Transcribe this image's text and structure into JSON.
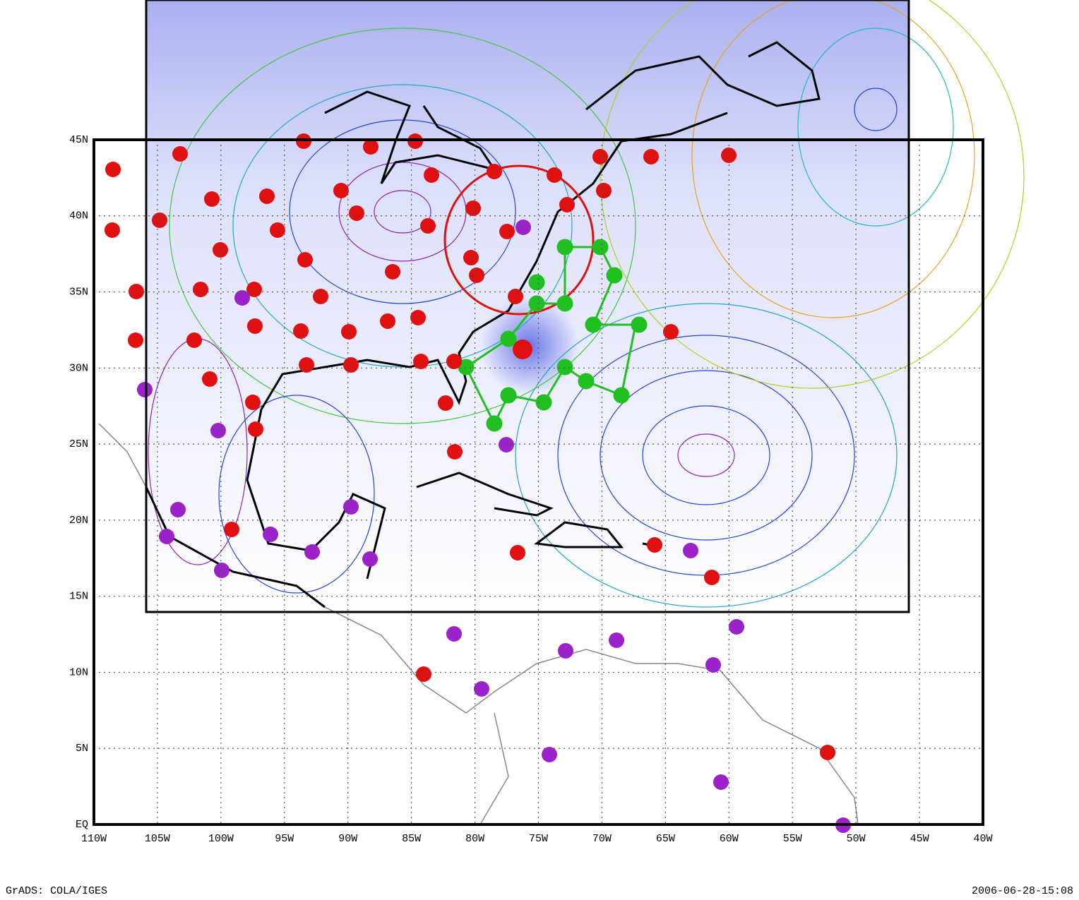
{
  "map": {
    "lonlim": [
      -110,
      -40
    ],
    "latlim": [
      0,
      45
    ],
    "lon_ticks": [
      {
        "value": -110,
        "label": "110W"
      },
      {
        "value": -105,
        "label": "105W"
      },
      {
        "value": -100,
        "label": "100W"
      },
      {
        "value": -95,
        "label": "95W"
      },
      {
        "value": -90,
        "label": "90W"
      },
      {
        "value": -85,
        "label": "85W"
      },
      {
        "value": -80,
        "label": "80W"
      },
      {
        "value": -75,
        "label": "75W"
      },
      {
        "value": -70,
        "label": "70W"
      },
      {
        "value": -65,
        "label": "65W"
      },
      {
        "value": -60,
        "label": "60W"
      },
      {
        "value": -55,
        "label": "55W"
      },
      {
        "value": -50,
        "label": "50W"
      },
      {
        "value": -45,
        "label": "45W"
      },
      {
        "value": -40,
        "label": "40W"
      }
    ],
    "lat_ticks": [
      {
        "value": 0,
        "label": "EQ"
      },
      {
        "value": 5,
        "label": "5N"
      },
      {
        "value": 10,
        "label": "10N"
      },
      {
        "value": 15,
        "label": "15N"
      },
      {
        "value": 20,
        "label": "20N"
      },
      {
        "value": 25,
        "label": "25N"
      },
      {
        "value": 30,
        "label": "30N"
      },
      {
        "value": 35,
        "label": "35N"
      },
      {
        "value": 40,
        "label": "40N"
      },
      {
        "value": 45,
        "label": "45N"
      }
    ],
    "footer_left": "GrADS: COLA/IGES",
    "footer_right": "2006-06-28-15:08"
  }
}
